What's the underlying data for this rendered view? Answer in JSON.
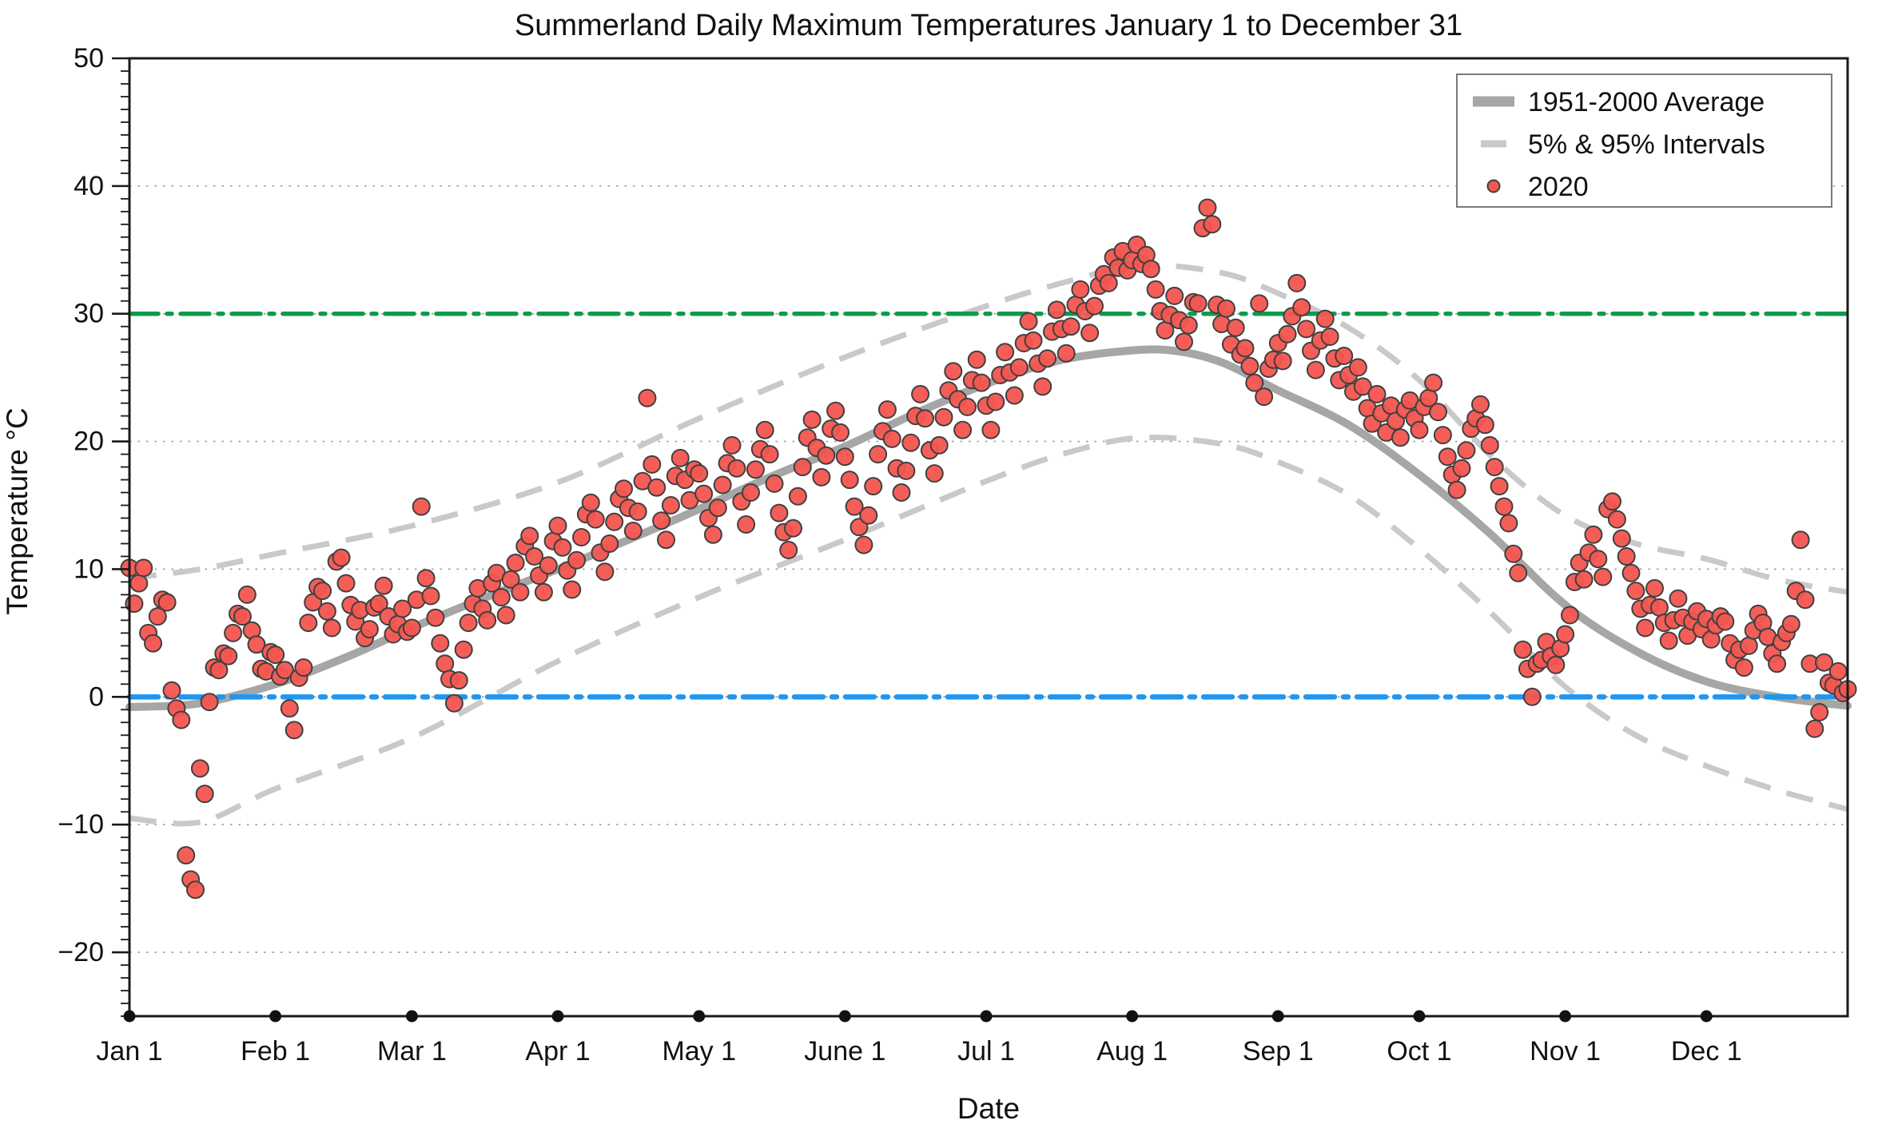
{
  "chart_data": {
    "type": "scatter",
    "title": "Summerland Daily Maximum Temperatures January 1 to December 31",
    "xlabel": "Date",
    "ylabel": "Temperature °C",
    "ylim": [
      -25,
      50
    ],
    "days_in_year": 366,
    "grid": "horizontal dotted lines every 10°C",
    "yticks": [
      {
        "value": 50,
        "label": "50"
      },
      {
        "value": 40,
        "label": "40"
      },
      {
        "value": 30,
        "label": "30"
      },
      {
        "value": 20,
        "label": "20"
      },
      {
        "value": 10,
        "label": "10"
      },
      {
        "value": 0,
        "label": "0"
      },
      {
        "value": -10,
        "label": "−10"
      },
      {
        "value": -20,
        "label": "−20"
      }
    ],
    "xticks": [
      {
        "day": 0,
        "label": "Jan 1"
      },
      {
        "day": 31,
        "label": "Feb 1"
      },
      {
        "day": 60,
        "label": "Mar 1"
      },
      {
        "day": 91,
        "label": "Apr 1"
      },
      {
        "day": 121,
        "label": "May 1"
      },
      {
        "day": 152,
        "label": "June 1"
      },
      {
        "day": 182,
        "label": "Jul 1"
      },
      {
        "day": 213,
        "label": "Aug 1"
      },
      {
        "day": 244,
        "label": "Sep 1"
      },
      {
        "day": 274,
        "label": "Oct 1"
      },
      {
        "day": 305,
        "label": "Nov 1"
      },
      {
        "day": 335,
        "label": "Dec 1"
      }
    ],
    "legend": {
      "position": "top-right",
      "entries": [
        {
          "label": "1951-2000 Average",
          "swatch": "thick-gray-line"
        },
        {
          "label": "5% & 95% Intervals",
          "swatch": "gray-dash"
        },
        {
          "label": "2020",
          "swatch": "red-dot"
        }
      ]
    },
    "reference_lines": [
      {
        "name": "30C-line",
        "value": 30,
        "color": "#0f9b4c",
        "style": "dash-dot"
      },
      {
        "name": "0C-line",
        "value": 0,
        "color": "#1e96f2",
        "style": "dash-dot"
      }
    ],
    "colors": {
      "average": "#a6a6a6",
      "intervals": "#c9c9c9",
      "points_fill": "#f4554f",
      "points_edge": "#404040",
      "axis": "#1a1a1a",
      "gridline": "#9a9a9a"
    },
    "series": {
      "average": {
        "name": "1951-2000 Average",
        "points": [
          [
            0,
            -0.8
          ],
          [
            15,
            -0.5
          ],
          [
            31,
            1.0
          ],
          [
            46,
            3.1
          ],
          [
            60,
            5.4
          ],
          [
            75,
            7.7
          ],
          [
            91,
            10.0
          ],
          [
            106,
            12.3
          ],
          [
            121,
            14.7
          ],
          [
            136,
            17.2
          ],
          [
            152,
            19.6
          ],
          [
            167,
            22.2
          ],
          [
            182,
            24.5
          ],
          [
            197,
            26.3
          ],
          [
            212,
            27.1
          ],
          [
            222,
            27.1
          ],
          [
            232,
            26.2
          ],
          [
            244,
            24.0
          ],
          [
            259,
            21.3
          ],
          [
            274,
            17.4
          ],
          [
            289,
            12.8
          ],
          [
            305,
            7.2
          ],
          [
            320,
            3.6
          ],
          [
            335,
            1.2
          ],
          [
            350,
            0.0
          ],
          [
            365,
            -0.7
          ]
        ]
      },
      "upper_95": {
        "name": "95% Interval",
        "points": [
          [
            0,
            9.3
          ],
          [
            15,
            10.0
          ],
          [
            31,
            11.2
          ],
          [
            60,
            13.4
          ],
          [
            91,
            16.8
          ],
          [
            121,
            21.8
          ],
          [
            152,
            26.6
          ],
          [
            182,
            30.6
          ],
          [
            200,
            32.6
          ],
          [
            215,
            33.8
          ],
          [
            232,
            33.2
          ],
          [
            244,
            31.6
          ],
          [
            259,
            28.9
          ],
          [
            274,
            24.8
          ],
          [
            290,
            18.6
          ],
          [
            305,
            14.2
          ],
          [
            320,
            12.0
          ],
          [
            335,
            10.8
          ],
          [
            350,
            9.2
          ],
          [
            365,
            8.2
          ]
        ]
      },
      "lower_5": {
        "name": "5% Interval",
        "points": [
          [
            0,
            -9.5
          ],
          [
            15,
            -9.8
          ],
          [
            31,
            -7.2
          ],
          [
            60,
            -3.2
          ],
          [
            91,
            2.8
          ],
          [
            121,
            7.8
          ],
          [
            152,
            12.3
          ],
          [
            182,
            16.9
          ],
          [
            200,
            19.2
          ],
          [
            215,
            20.3
          ],
          [
            232,
            19.8
          ],
          [
            244,
            18.4
          ],
          [
            259,
            15.8
          ],
          [
            274,
            11.6
          ],
          [
            290,
            6.3
          ],
          [
            305,
            0.8
          ],
          [
            320,
            -3.0
          ],
          [
            335,
            -5.4
          ],
          [
            350,
            -7.3
          ],
          [
            365,
            -8.8
          ]
        ]
      },
      "daily_2020": {
        "name": "2020",
        "start_day": 0,
        "values": [
          10.1,
          7.3,
          8.9,
          10.1,
          5.0,
          4.2,
          6.3,
          7.6,
          7.4,
          0.5,
          -0.9,
          -1.8,
          -12.4,
          -14.3,
          -15.1,
          -5.6,
          -7.6,
          -0.4,
          2.3,
          2.1,
          3.4,
          3.2,
          5.0,
          6.5,
          6.3,
          8.0,
          5.2,
          4.1,
          2.2,
          2.0,
          3.5,
          3.3,
          1.6,
          2.1,
          -0.9,
          -2.6,
          1.5,
          2.3,
          5.8,
          7.4,
          8.6,
          8.3,
          6.7,
          5.4,
          10.6,
          10.9,
          8.9,
          7.2,
          5.9,
          6.8,
          4.6,
          5.3,
          7.0,
          7.3,
          8.7,
          6.3,
          4.9,
          5.7,
          6.9,
          5.1,
          5.4,
          7.6,
          14.9,
          9.3,
          7.9,
          6.2,
          4.2,
          2.6,
          1.4,
          -0.5,
          1.3,
          3.7,
          5.8,
          7.3,
          8.5,
          6.9,
          6.0,
          8.9,
          9.7,
          7.8,
          6.4,
          9.2,
          10.5,
          8.2,
          11.8,
          12.6,
          11.0,
          9.5,
          8.2,
          10.3,
          12.2,
          13.4,
          11.7,
          9.9,
          8.4,
          10.7,
          12.5,
          14.3,
          15.2,
          13.9,
          11.3,
          9.8,
          12.0,
          13.7,
          15.5,
          16.3,
          14.8,
          13.0,
          14.5,
          16.9,
          23.4,
          18.2,
          16.4,
          13.8,
          12.3,
          15.0,
          17.3,
          18.7,
          17.0,
          15.4,
          17.8,
          17.5,
          15.9,
          14.0,
          12.7,
          14.8,
          16.6,
          18.3,
          19.7,
          17.9,
          15.3,
          13.5,
          16.0,
          17.8,
          19.4,
          20.9,
          19.0,
          16.7,
          14.4,
          12.9,
          11.5,
          13.2,
          15.7,
          18.0,
          20.3,
          21.7,
          19.5,
          17.2,
          18.9,
          21.0,
          22.4,
          20.7,
          18.8,
          17.0,
          14.9,
          13.3,
          11.9,
          14.2,
          16.5,
          19.0,
          20.8,
          22.5,
          20.2,
          17.9,
          16.0,
          17.7,
          19.9,
          22.0,
          23.7,
          21.8,
          19.3,
          17.5,
          19.7,
          21.9,
          24.0,
          25.5,
          23.3,
          20.9,
          22.7,
          24.8,
          26.4,
          24.6,
          22.8,
          20.9,
          23.1,
          25.2,
          27.0,
          25.4,
          23.6,
          25.8,
          27.7,
          29.4,
          27.9,
          26.1,
          24.3,
          26.5,
          28.6,
          30.3,
          28.8,
          26.9,
          29.0,
          30.7,
          31.9,
          30.2,
          28.5,
          30.6,
          32.2,
          33.1,
          32.4,
          34.4,
          33.6,
          34.9,
          33.4,
          34.2,
          35.4,
          33.9,
          34.6,
          33.5,
          31.9,
          30.2,
          28.7,
          29.9,
          31.4,
          29.5,
          27.8,
          29.1,
          30.9,
          30.8,
          36.7,
          38.3,
          37.0,
          30.7,
          29.2,
          30.4,
          27.6,
          28.9,
          26.8,
          27.3,
          25.9,
          24.6,
          30.8,
          23.5,
          25.7,
          26.4,
          27.7,
          26.3,
          28.4,
          29.8,
          32.4,
          30.5,
          28.8,
          27.1,
          25.6,
          27.9,
          29.6,
          28.2,
          26.5,
          24.8,
          26.7,
          25.2,
          23.9,
          25.8,
          24.3,
          22.6,
          21.4,
          23.7,
          22.2,
          20.7,
          22.8,
          21.6,
          20.3,
          22.5,
          23.2,
          21.8,
          20.9,
          22.7,
          23.4,
          24.6,
          22.3,
          20.5,
          18.8,
          17.4,
          16.2,
          17.9,
          19.3,
          21.0,
          21.8,
          22.9,
          21.3,
          19.7,
          18.0,
          16.5,
          14.9,
          13.6,
          11.2,
          9.7,
          3.7,
          2.2,
          0.0,
          2.6,
          2.9,
          4.3,
          3.2,
          2.5,
          3.8,
          4.9,
          6.4,
          9.0,
          10.5,
          9.2,
          11.3,
          12.7,
          10.8,
          9.4,
          14.7,
          15.3,
          13.9,
          12.4,
          11.0,
          9.7,
          8.3,
          6.9,
          5.4,
          7.2,
          8.5,
          7.0,
          5.8,
          4.4,
          6.0,
          7.7,
          6.2,
          4.8,
          5.9,
          6.7,
          5.3,
          6.1,
          4.5,
          5.6,
          6.3,
          5.9,
          4.2,
          2.9,
          3.7,
          2.3,
          4.0,
          5.2,
          6.5,
          5.8,
          4.7,
          3.4,
          2.6,
          4.3,
          5.0,
          5.7,
          8.3,
          12.3,
          7.6,
          2.6,
          -2.5,
          -1.2,
          2.7,
          1.1,
          0.9,
          2.0,
          0.3,
          0.6
        ]
      }
    }
  }
}
